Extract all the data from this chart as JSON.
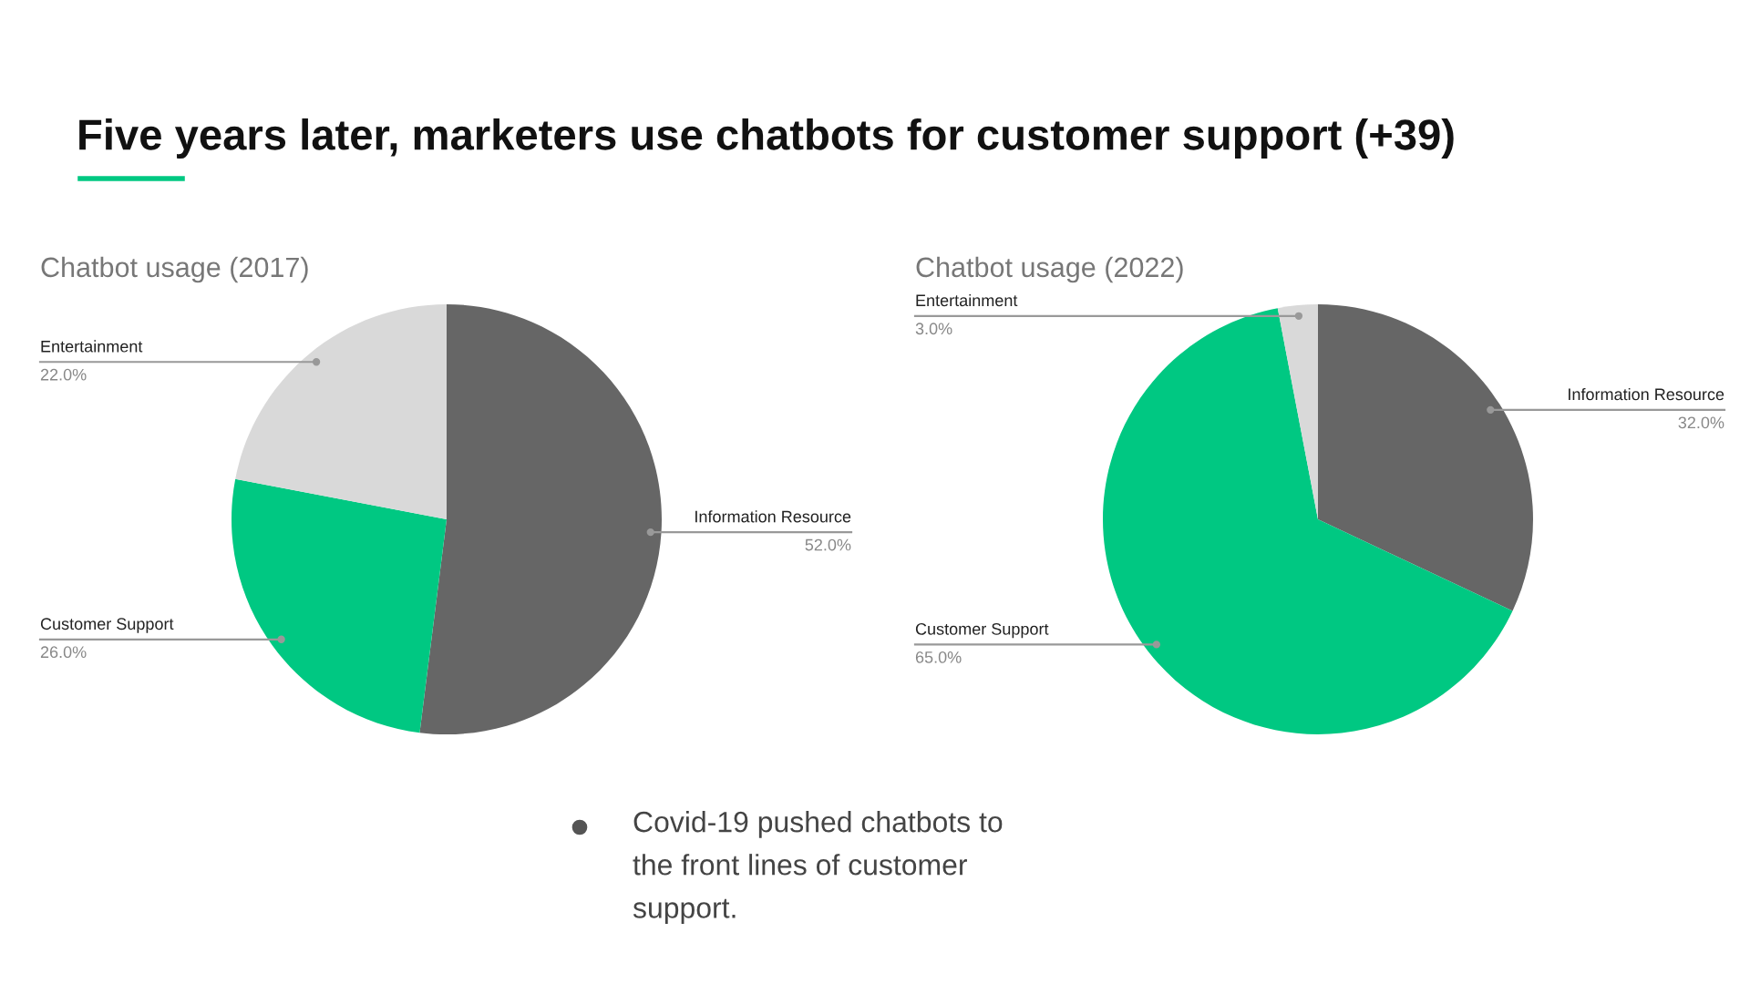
{
  "chart_data": [
    {
      "type": "other",
      "title": "Five years later, marketers use chatbots for customer support (+39)",
      "annotations": [
        "Covid-19 pushed chatbots to\nthe front lines of customer\nsupport."
      ]
    },
    {
      "type": "pie",
      "title": "Chatbot usage (2017)",
      "categories": [
        "Information Resource",
        "Customer Support",
        "Entertainment"
      ],
      "values": [
        52,
        26,
        22
      ],
      "colors": [
        "#666666",
        "#00c882",
        "#d9d9d9"
      ],
      "value_labels": [
        "52.0%",
        "26.0%",
        "22.0%"
      ]
    },
    {
      "type": "pie",
      "title": "Chatbot usage (2022)",
      "categories": [
        "Information Resource",
        "Customer Support",
        "Entertainment"
      ],
      "values": [
        32,
        65,
        3
      ],
      "colors": [
        "#666666",
        "#00c882",
        "#d9d9d9"
      ],
      "value_labels": [
        "32.0%",
        "65.0%",
        "3.0%"
      ]
    }
  ]
}
